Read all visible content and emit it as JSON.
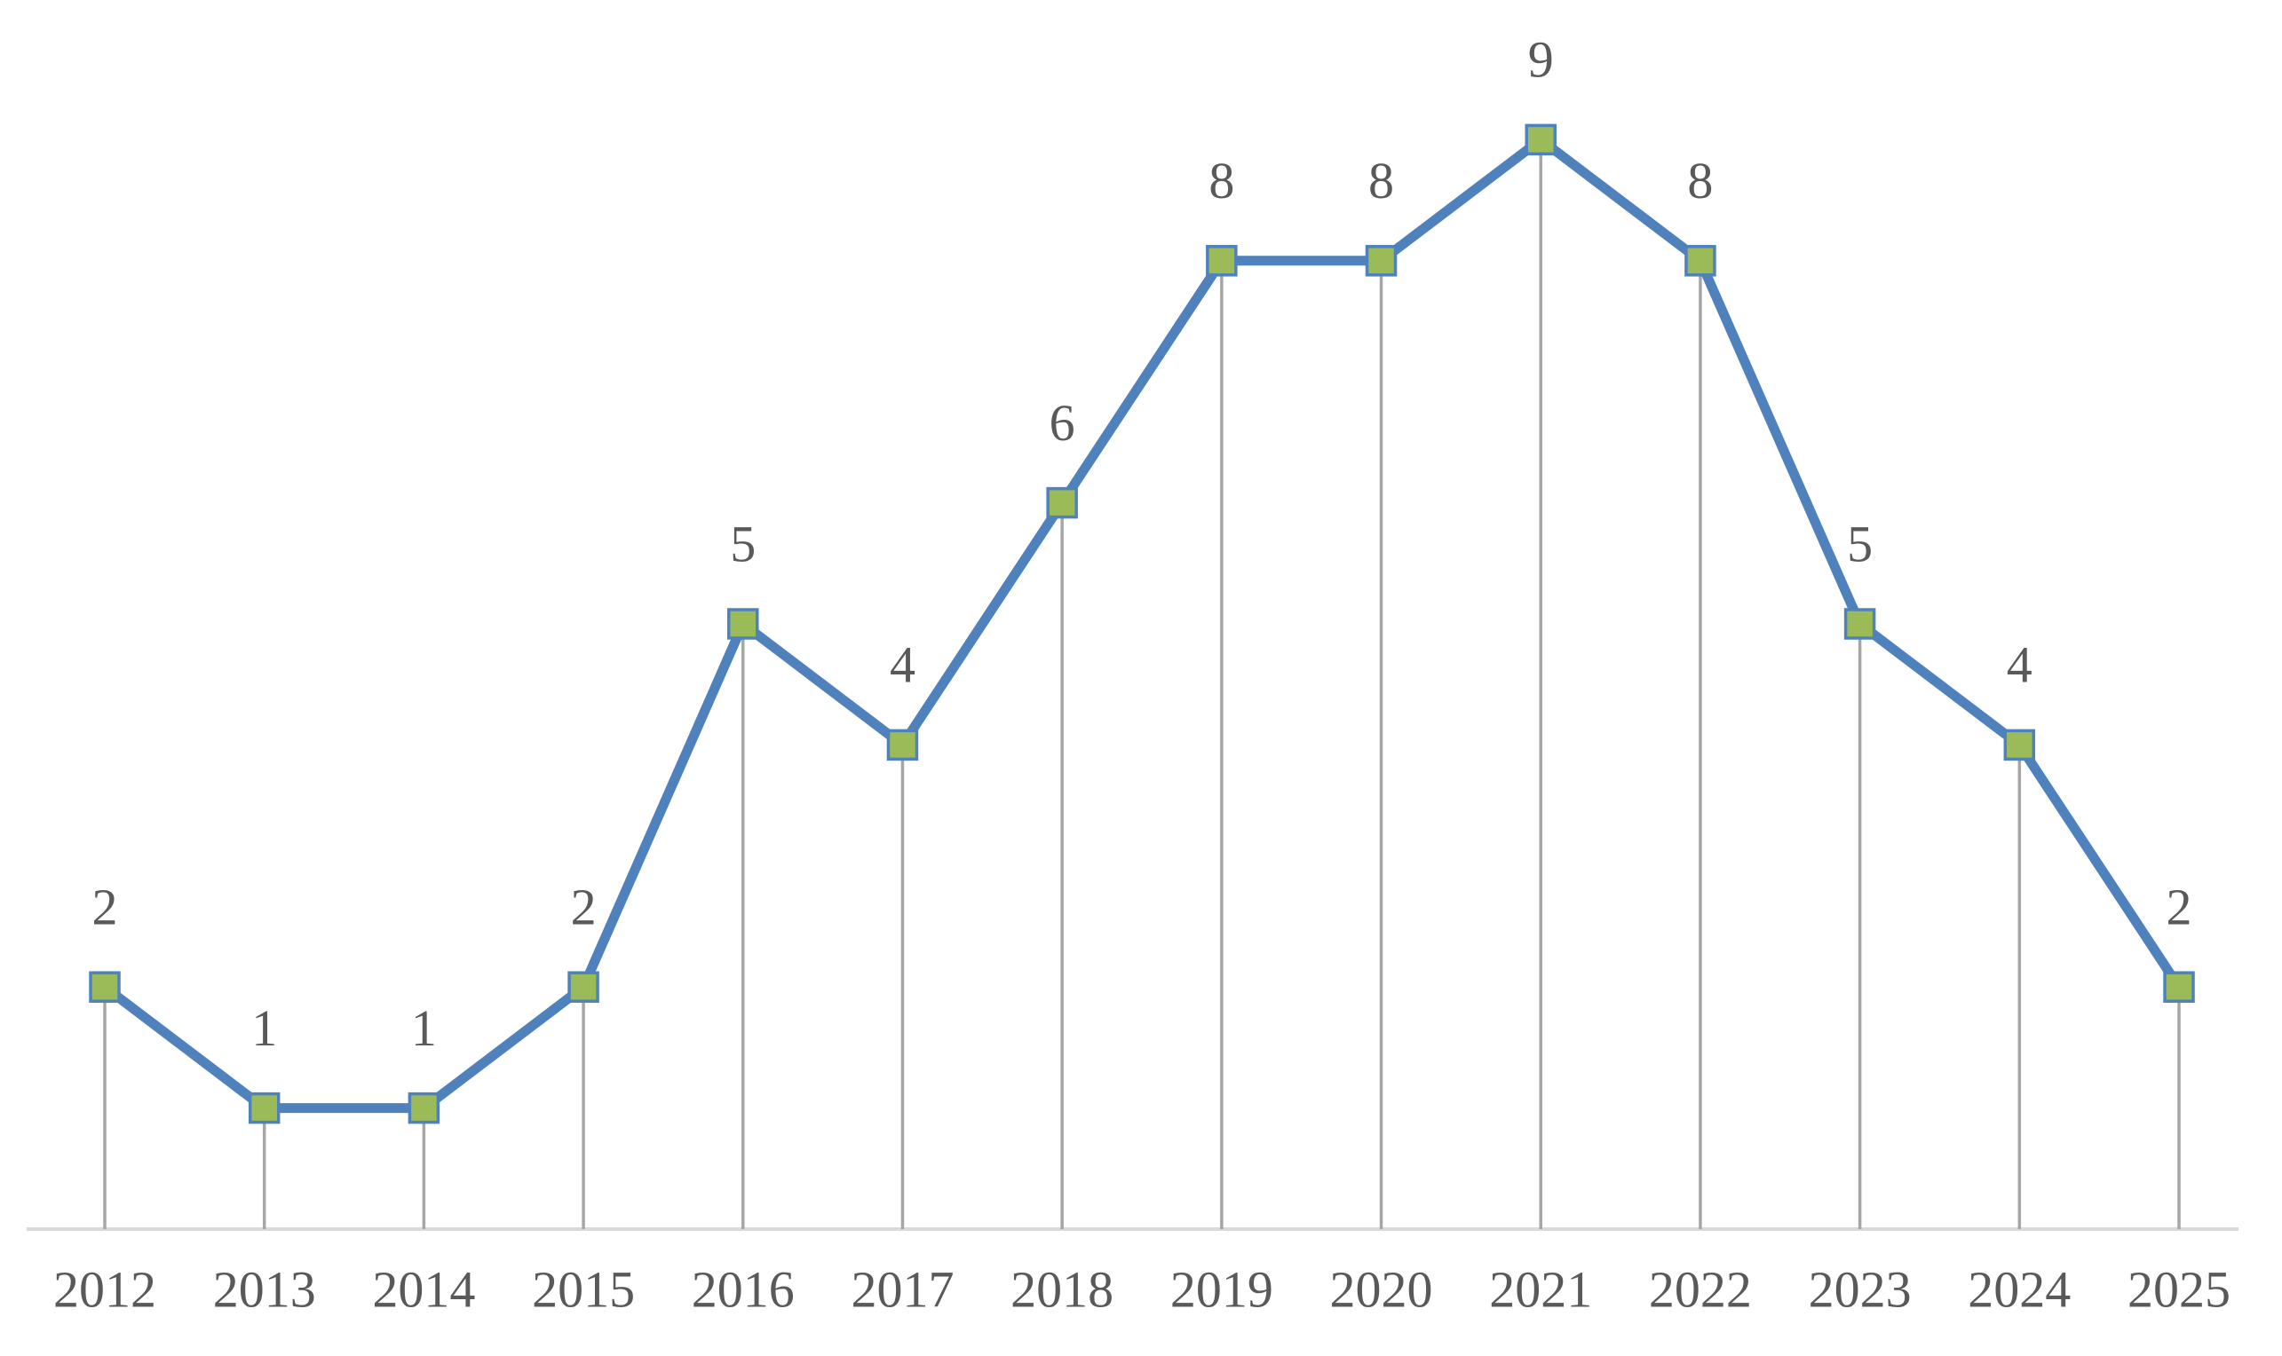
{
  "chart_data": {
    "type": "line",
    "categories": [
      "2012",
      "2013",
      "2014",
      "2015",
      "2016",
      "2017",
      "2018",
      "2019",
      "2020",
      "2021",
      "2022",
      "2023",
      "2024",
      "2025"
    ],
    "series": [
      {
        "color": "#4f81bd",
        "marker_color": "#9bbb59",
        "values": [
          2,
          1,
          1,
          2,
          5,
          4,
          6,
          8,
          8,
          9,
          8,
          5,
          4,
          2
        ]
      }
    ],
    "ylim": [
      0,
      10
    ],
    "drop_lines": true,
    "data_labels": true
  }
}
